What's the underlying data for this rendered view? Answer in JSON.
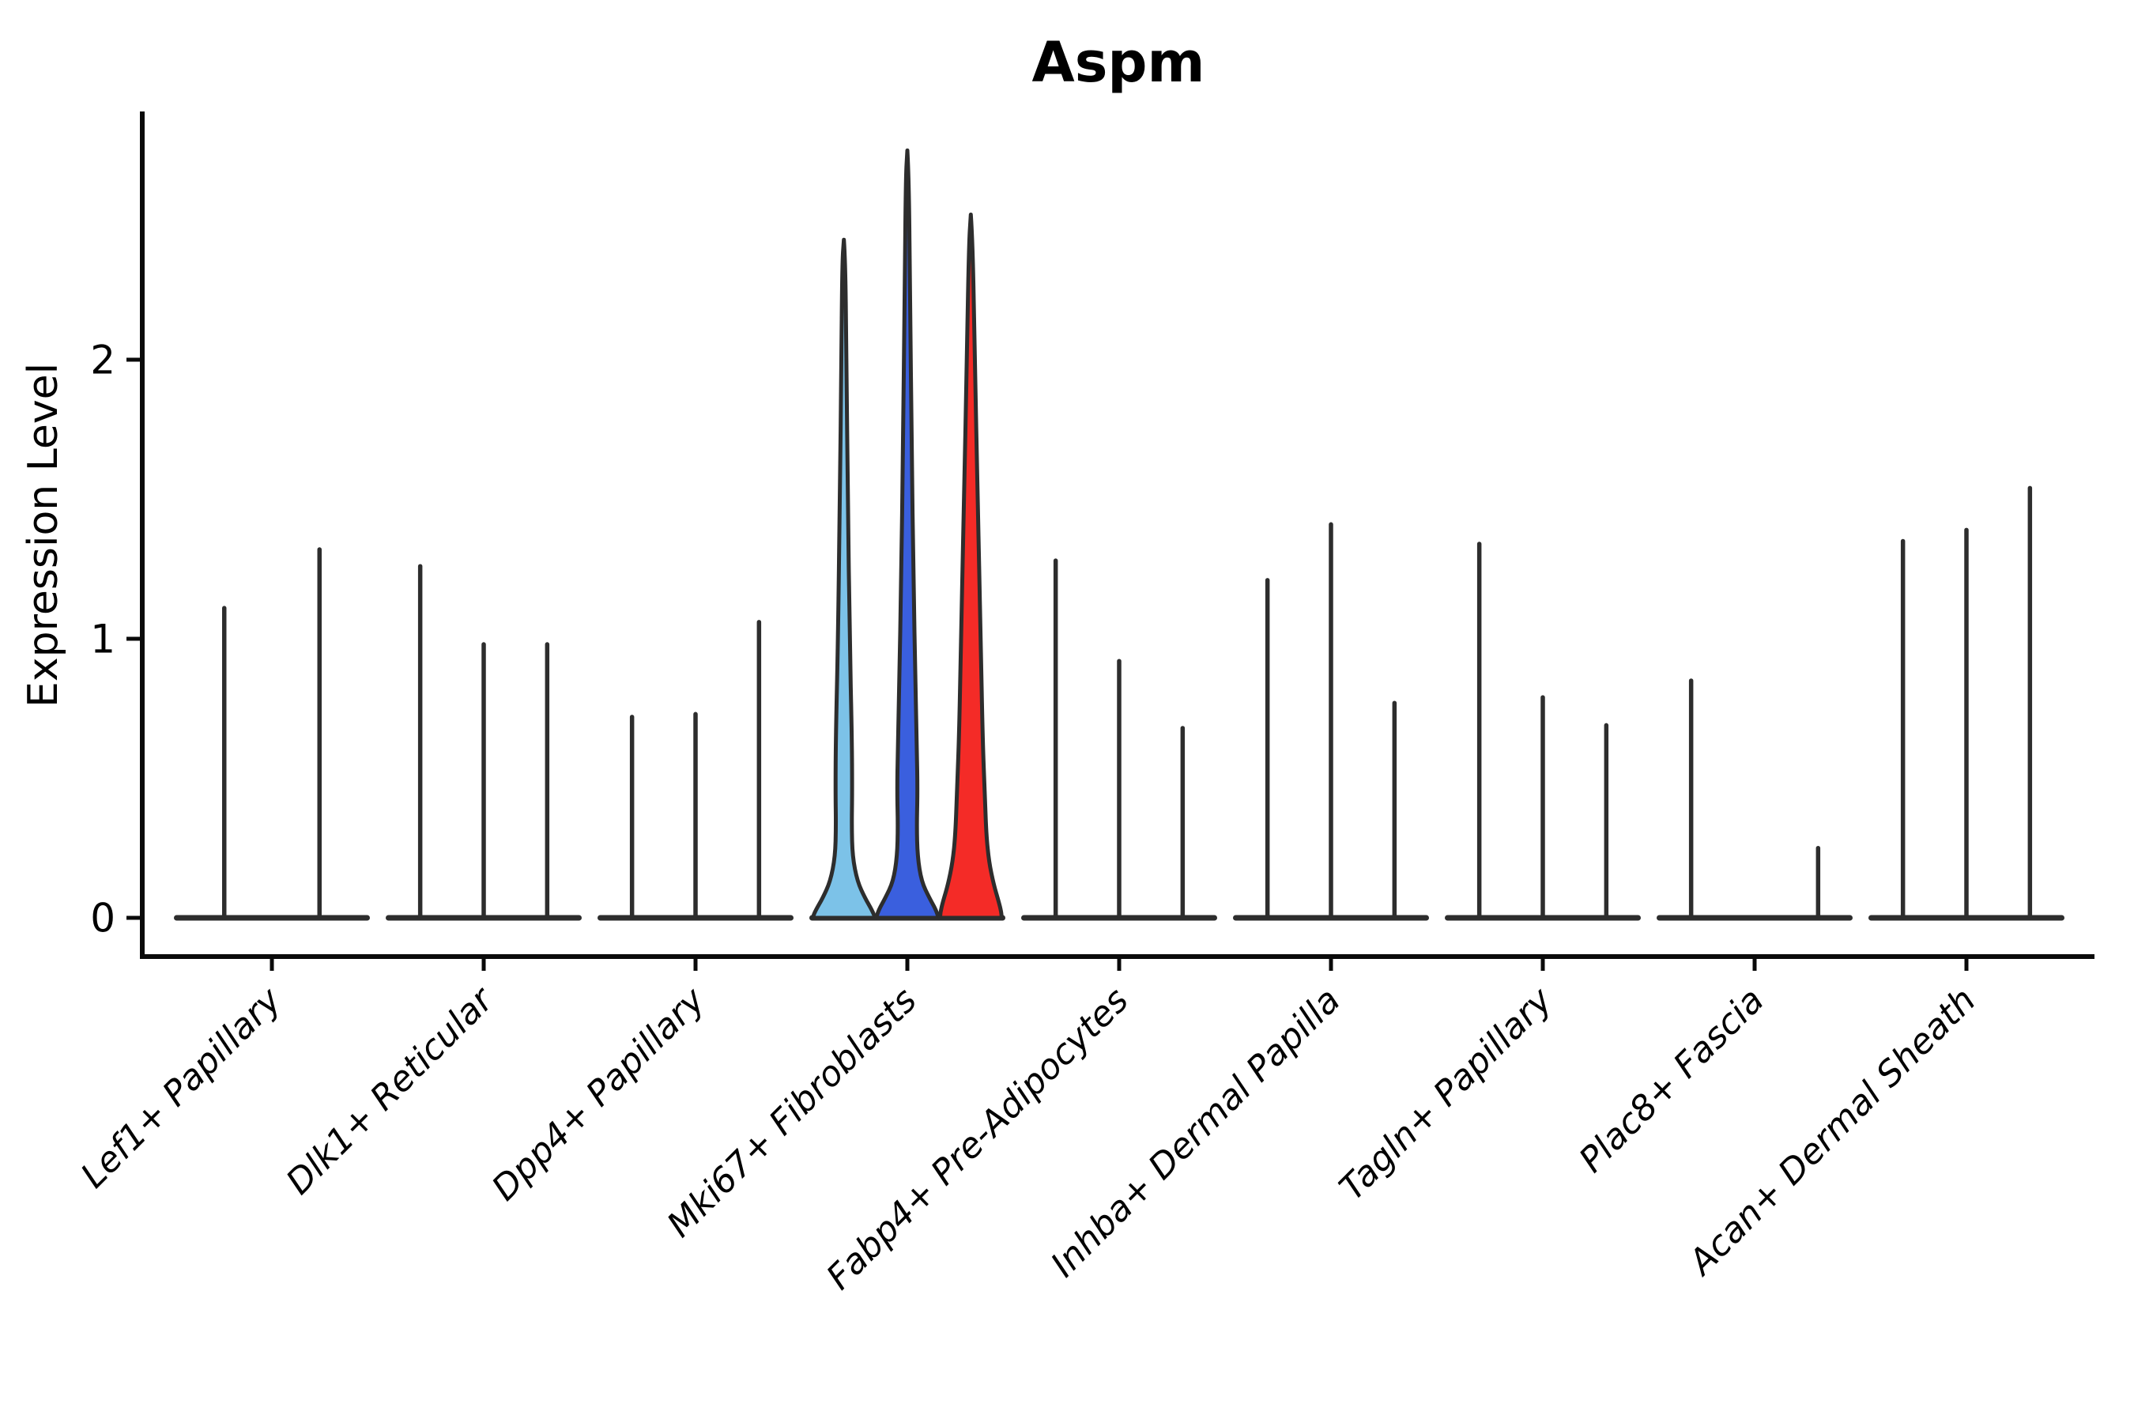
{
  "title": "Aspm",
  "colors": {
    "axis": "#0a0a0a",
    "violin_outline": "#2d2d2d",
    "spike": "#2d2d2d",
    "highlight_lightblue": "#7cc2e8",
    "highlight_blue": "#3a5fde",
    "highlight_red": "#f42b27",
    "background": "#ffffff"
  },
  "chart_data": {
    "type": "violin",
    "title": "Aspm",
    "xlabel": "",
    "ylabel": "Expression Level",
    "ylim": [
      -0.07,
      2.88
    ],
    "yticks": [
      0,
      1,
      2
    ],
    "grid": false,
    "legend_position": "none",
    "categories": [
      "Lef1+ Papillary",
      "Dlk1+ Reticular",
      "Dpp4+ Papillary",
      "Mki67+ Fibroblasts",
      "Fabp4+ Pre-Adipocytes",
      "Inhba+ Dermal Papilla",
      "Tagln+ Papillary",
      "Plac8+ Fascia",
      "Acan+ Dermal Sheath"
    ],
    "groups": [
      {
        "label": "Lef1+ Papillary",
        "violins": [
          {
            "max": 1.11
          },
          {
            "max": 1.32
          }
        ]
      },
      {
        "label": "Dlk1+ Reticular",
        "violins": [
          {
            "max": 1.26
          },
          {
            "max": 0.98
          },
          {
            "max": 0.98
          }
        ]
      },
      {
        "label": "Dpp4+ Papillary",
        "violins": [
          {
            "max": 0.72
          },
          {
            "max": 0.73
          },
          {
            "max": 1.06
          }
        ]
      },
      {
        "label": "Mki67+ Fibroblasts",
        "violins": [
          {
            "max": 2.43,
            "color": "#7cc2e8",
            "profile": [
              [
                2.43,
                0.0
              ],
              [
                2.35,
                0.05
              ],
              [
                2.0,
                0.08
              ],
              [
                1.5,
                0.13
              ],
              [
                1.0,
                0.19
              ],
              [
                0.65,
                0.26
              ],
              [
                0.45,
                0.27
              ],
              [
                0.33,
                0.255
              ],
              [
                0.22,
                0.28
              ],
              [
                0.13,
                0.44
              ],
              [
                0.07,
                0.69
              ],
              [
                0.03,
                0.9
              ],
              [
                0.005,
                1.0
              ],
              [
                0,
                1.0
              ]
            ]
          },
          {
            "max": 2.75,
            "color": "#3a5fde",
            "profile": [
              [
                2.75,
                0.0
              ],
              [
                2.65,
                0.05
              ],
              [
                2.2,
                0.09
              ],
              [
                1.7,
                0.14
              ],
              [
                1.2,
                0.2
              ],
              [
                0.85,
                0.26
              ],
              [
                0.6,
                0.31
              ],
              [
                0.45,
                0.33
              ],
              [
                0.33,
                0.305
              ],
              [
                0.22,
                0.33
              ],
              [
                0.13,
                0.46
              ],
              [
                0.07,
                0.72
              ],
              [
                0.03,
                0.92
              ],
              [
                0.005,
                1.0
              ],
              [
                0,
                1.0
              ]
            ]
          },
          {
            "max": 2.52,
            "color": "#f42b27",
            "profile": [
              [
                2.52,
                0.0
              ],
              [
                2.42,
                0.06
              ],
              [
                2.0,
                0.13
              ],
              [
                1.5,
                0.22
              ],
              [
                1.0,
                0.32
              ],
              [
                0.65,
                0.38
              ],
              [
                0.45,
                0.45
              ],
              [
                0.3,
                0.5
              ],
              [
                0.2,
                0.59
              ],
              [
                0.12,
                0.74
              ],
              [
                0.06,
                0.9
              ],
              [
                0.02,
                0.99
              ],
              [
                0,
                1.0
              ]
            ]
          }
        ]
      },
      {
        "label": "Fabp4+ Pre-Adipocytes",
        "violins": [
          {
            "max": 1.28
          },
          {
            "max": 0.92
          },
          {
            "max": 0.68
          }
        ]
      },
      {
        "label": "Inhba+ Dermal Papilla",
        "violins": [
          {
            "max": 1.21
          },
          {
            "max": 1.41
          },
          {
            "max": 0.77
          }
        ]
      },
      {
        "label": "Tagln+ Papillary",
        "violins": [
          {
            "max": 1.34
          },
          {
            "max": 0.79
          },
          {
            "max": 0.69
          }
        ]
      },
      {
        "label": "Plac8+ Fascia",
        "violins": [
          {
            "max": 0.85
          },
          {
            "max": 0
          },
          {
            "max": 0.25
          }
        ]
      },
      {
        "label": "Acan+ Dermal Sheath",
        "violins": [
          {
            "max": 1.35
          },
          {
            "max": 1.39
          },
          {
            "max": 1.54
          }
        ]
      }
    ]
  }
}
